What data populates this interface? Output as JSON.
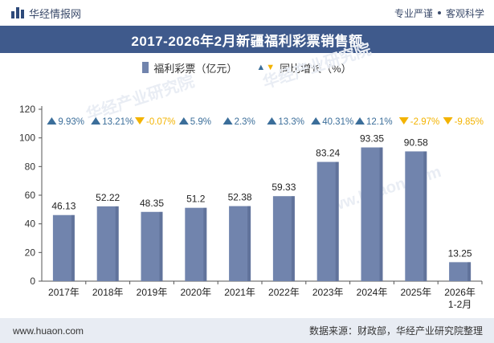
{
  "header": {
    "brand": "华经情报网",
    "tagline_left": "专业严谨",
    "tagline_right": "客观科学"
  },
  "title": "2017-2026年2月新疆福利彩票销售额",
  "legend": {
    "bar_label": "福利彩票（亿元）",
    "growth_label": "同比增长（%）"
  },
  "colors": {
    "bar": "#7184ad",
    "bar_dark": "#4e5f86",
    "up": "#3b6e9a",
    "down": "#f3b300",
    "title_band": "#3f5a8c"
  },
  "footer": {
    "website": "www.huaon.com",
    "source": "数据来源：财政部，华经产业研究院整理"
  },
  "watermarks": [
    "华经产业研究院",
    "华经产业研究院",
    "www.huaon.com"
  ],
  "chart_data": {
    "type": "bar",
    "categories": [
      "2017年",
      "2018年",
      "2019年",
      "2020年",
      "2021年",
      "2022年",
      "2023年",
      "2024年",
      "2025年",
      "2026年\n1-2月"
    ],
    "series": [
      {
        "name": "福利彩票（亿元）",
        "values": [
          46.13,
          52.22,
          48.35,
          51.2,
          52.38,
          59.33,
          83.24,
          93.35,
          90.58,
          13.25
        ],
        "labels": [
          "46.13",
          "52.22",
          "48.35",
          "51.2",
          "52.38",
          "59.33",
          "83.24",
          "93.35",
          "90.58",
          "13.25"
        ]
      },
      {
        "name": "同比增长（%）",
        "values": [
          9.93,
          13.21,
          -0.07,
          5.9,
          2.3,
          13.3,
          40.31,
          12.1,
          -2.97,
          -9.85
        ],
        "labels": [
          "9.93%",
          "13.21%",
          "-0.07%",
          "5.9%",
          "2.3%",
          "13.3%",
          "40.31%",
          "12.1%",
          "-2.97%",
          "-9.85%"
        ]
      }
    ],
    "ylim": [
      0,
      120
    ],
    "yticks": [
      0,
      20,
      40,
      60,
      80,
      100,
      120
    ],
    "xlabel": "",
    "ylabel": "",
    "grid": false,
    "legend_position": "top-center"
  }
}
